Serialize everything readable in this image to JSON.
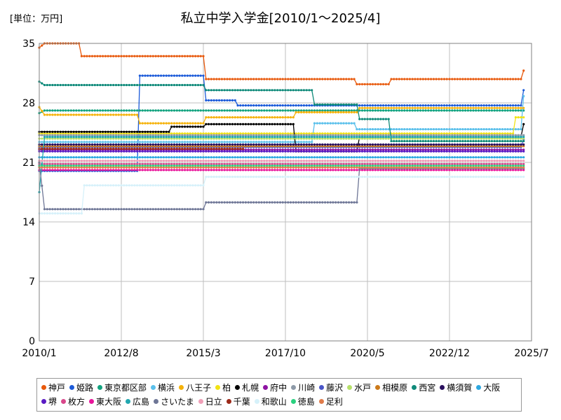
{
  "chart_data": {
    "type": "line",
    "title": "私立中学入学金[2010/1～2025/4]",
    "unit_label": "[単位：万円]",
    "xlabel": "",
    "ylabel": "",
    "ylim": [
      0,
      35
    ],
    "yticks": [
      "0",
      "7",
      "14",
      "21",
      "28",
      "35"
    ],
    "xlim": [
      "2010-01",
      "2025-07"
    ],
    "xticks": [
      "2010/1",
      "2012/8",
      "2015/3",
      "2017/10",
      "2020/5",
      "2022/12",
      "2025/7"
    ],
    "grid": true,
    "legend_position": "bottom",
    "series": [
      {
        "name": "神戸",
        "color": "#e8590c",
        "points": [
          [
            "2010-01",
            34.5
          ],
          [
            "2010-03",
            35
          ],
          [
            "2011-04",
            35
          ],
          [
            "2011-05",
            33.5
          ],
          [
            "2015-03",
            33.5
          ],
          [
            "2015-04",
            30.8
          ],
          [
            "2019-12",
            30.8
          ],
          [
            "2020-01",
            30.2
          ],
          [
            "2021-01",
            30.2
          ],
          [
            "2021-02",
            30.8
          ],
          [
            "2025-03",
            30.8
          ],
          [
            "2025-04",
            31.8
          ]
        ]
      },
      {
        "name": "姫路",
        "color": "#1c5bd9",
        "points": [
          [
            "2010-01",
            20
          ],
          [
            "2013-02",
            20
          ],
          [
            "2013-03",
            31.2
          ],
          [
            "2015-03",
            31.2
          ],
          [
            "2015-04",
            28.3
          ],
          [
            "2016-03",
            28.3
          ],
          [
            "2016-04",
            27.7
          ],
          [
            "2025-03",
            27.7
          ],
          [
            "2025-04",
            29.5
          ]
        ]
      },
      {
        "name": "東京都区部",
        "color": "#12a37f",
        "points": [
          [
            "2010-01",
            26.8
          ],
          [
            "2010-03",
            27.1
          ],
          [
            "2025-04",
            27.1
          ]
        ]
      },
      {
        "name": "横浜",
        "color": "#5bc0eb",
        "points": [
          [
            "2010-01",
            23.4
          ],
          [
            "2018-08",
            23.4
          ],
          [
            "2018-09",
            25.6
          ],
          [
            "2019-12",
            25.6
          ],
          [
            "2020-01",
            24.9
          ],
          [
            "2025-03",
            24.9
          ],
          [
            "2025-04",
            28.8
          ]
        ]
      },
      {
        "name": "八王子",
        "color": "#f5b20a",
        "points": [
          [
            "2010-01",
            27.5
          ],
          [
            "2010-03",
            26.6
          ],
          [
            "2013-02",
            26.6
          ],
          [
            "2013-03",
            25.6
          ],
          [
            "2015-03",
            25.6
          ],
          [
            "2015-04",
            26.3
          ],
          [
            "2018-01",
            26.3
          ],
          [
            "2018-02",
            26.9
          ],
          [
            "2020-01",
            26.9
          ],
          [
            "2020-02",
            27.4
          ],
          [
            "2025-04",
            27.4
          ]
        ]
      },
      {
        "name": "柏",
        "color": "#f2e313",
        "points": [
          [
            "2010-01",
            24.4
          ],
          [
            "2024-12",
            24.4
          ],
          [
            "2025-01",
            26.3
          ],
          [
            "2025-04",
            26.3
          ]
        ]
      },
      {
        "name": "札幌",
        "color": "#000000",
        "points": [
          [
            "2010-01",
            24.6
          ],
          [
            "2014-02",
            24.6
          ],
          [
            "2014-03",
            25.2
          ],
          [
            "2015-03",
            25.2
          ],
          [
            "2015-04",
            25.5
          ],
          [
            "2018-01",
            25.5
          ],
          [
            "2018-02",
            22.3
          ],
          [
            "2020-01",
            22.3
          ],
          [
            "2020-02",
            24
          ],
          [
            "2025-03",
            24
          ],
          [
            "2025-04",
            25.5
          ]
        ]
      },
      {
        "name": "府中",
        "color": "#8e13a3",
        "points": [
          [
            "2010-01",
            22.5
          ],
          [
            "2025-04",
            22.5
          ]
        ]
      },
      {
        "name": "川崎",
        "color": "#8e9aa8",
        "points": [
          [
            "2010-01",
            24.2
          ],
          [
            "2025-04",
            24.2
          ]
        ]
      },
      {
        "name": "藤沢",
        "color": "#4a55c8",
        "points": [
          [
            "2010-01",
            22.8
          ],
          [
            "2025-03",
            22.8
          ],
          [
            "2025-04",
            23.7
          ]
        ]
      },
      {
        "name": "水戸",
        "color": "#b6e06a",
        "points": [
          [
            "2010-01",
            23.8
          ],
          [
            "2025-04",
            23.8
          ]
        ]
      },
      {
        "name": "相模原",
        "color": "#cc7a1a",
        "points": [
          [
            "2010-01",
            22.9
          ],
          [
            "2025-04",
            22.9
          ]
        ]
      },
      {
        "name": "西宮",
        "color": "#0f8a7a",
        "points": [
          [
            "2010-01",
            30.5
          ],
          [
            "2010-03",
            30.1
          ],
          [
            "2015-03",
            30.1
          ],
          [
            "2015-04",
            29.5
          ],
          [
            "2018-08",
            29.5
          ],
          [
            "2018-09",
            27.8
          ],
          [
            "2020-01",
            27.8
          ],
          [
            "2020-02",
            26.1
          ],
          [
            "2021-01",
            26.1
          ],
          [
            "2021-02",
            23.5
          ],
          [
            "2025-04",
            23.5
          ]
        ]
      },
      {
        "name": "横須賀",
        "color": "#2a0f5e",
        "points": [
          [
            "2010-01",
            23.1
          ],
          [
            "2025-04",
            23.1
          ]
        ]
      },
      {
        "name": "大阪",
        "color": "#2ea8e0",
        "points": [
          [
            "2010-01",
            21.6
          ],
          [
            "2025-04",
            21.6
          ]
        ]
      },
      {
        "name": "堺",
        "color": "#5a1bc4",
        "points": [
          [
            "2010-01",
            22.3
          ],
          [
            "2025-04",
            22.3
          ]
        ]
      },
      {
        "name": "枚方",
        "color": "#d9488c",
        "points": [
          [
            "2010-01",
            20.8
          ],
          [
            "2025-04",
            20.8
          ]
        ]
      },
      {
        "name": "東大阪",
        "color": "#e8159a",
        "points": [
          [
            "2010-01",
            20.1
          ],
          [
            "2025-04",
            20.1
          ]
        ]
      },
      {
        "name": "広島",
        "color": "#22a7b0",
        "points": [
          [
            "2010-01",
            17.5
          ],
          [
            "2010-03",
            24
          ],
          [
            "2025-04",
            24
          ]
        ]
      },
      {
        "name": "さいたま",
        "color": "#6e7696",
        "points": [
          [
            "2010-01",
            21
          ],
          [
            "2010-03",
            15.5
          ],
          [
            "2015-03",
            15.5
          ],
          [
            "2015-04",
            16.3
          ],
          [
            "2020-01",
            16.3
          ],
          [
            "2020-02",
            20.3
          ],
          [
            "2025-04",
            20.3
          ]
        ]
      },
      {
        "name": "日立",
        "color": "#f0a0b8",
        "points": [
          [
            "2010-01",
            21.2
          ],
          [
            "2025-04",
            21.2
          ]
        ]
      },
      {
        "name": "千葉",
        "color": "#9c2a1a",
        "points": [
          [
            "2010-01",
            22.6
          ],
          [
            "2016-06",
            22.6
          ]
        ]
      },
      {
        "name": "和歌山",
        "color": "#d6f1fa",
        "points": [
          [
            "2010-01",
            15
          ],
          [
            "2011-05",
            15
          ],
          [
            "2011-06",
            18.3
          ],
          [
            "2015-03",
            18.3
          ],
          [
            "2015-04",
            19.3
          ],
          [
            "2025-04",
            19.3
          ]
        ]
      },
      {
        "name": "徳島",
        "color": "#2ad17f",
        "points": [
          [
            "2010-01",
            20.6
          ],
          [
            "2025-04",
            20.6
          ]
        ]
      },
      {
        "name": "足利",
        "color": "#e07b4a",
        "points": [
          [
            "2010-01",
            20.4
          ],
          [
            "2025-04",
            20.4
          ]
        ]
      }
    ]
  }
}
